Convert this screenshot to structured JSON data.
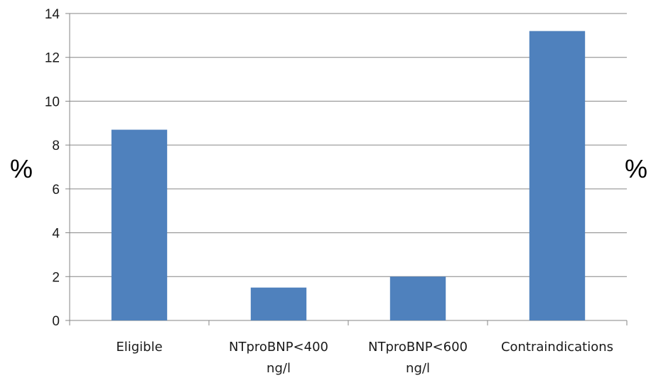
{
  "chart_data": {
    "type": "bar",
    "categories": [
      "Eligible",
      "NTproBNP<400 ng/l",
      "NTproBNP<600 ng/l",
      "Contraindications"
    ],
    "category_lines": [
      [
        "Eligible"
      ],
      [
        "NTproBNP<400",
        "ng/l"
      ],
      [
        "NTproBNP<600",
        "ng/l"
      ],
      [
        "Contraindications"
      ]
    ],
    "values": [
      8.7,
      1.5,
      2.0,
      13.2
    ],
    "title": "",
    "xlabel": "",
    "ylabel": "%",
    "ylabel_right": "%",
    "ylim": [
      0,
      14
    ],
    "yticks": [
      0,
      2,
      4,
      6,
      8,
      10,
      12,
      14
    ],
    "grid": true,
    "legend": "none",
    "bar_color": "#4f81bd",
    "grid_color": "#868686",
    "axis_color": "#868686"
  }
}
